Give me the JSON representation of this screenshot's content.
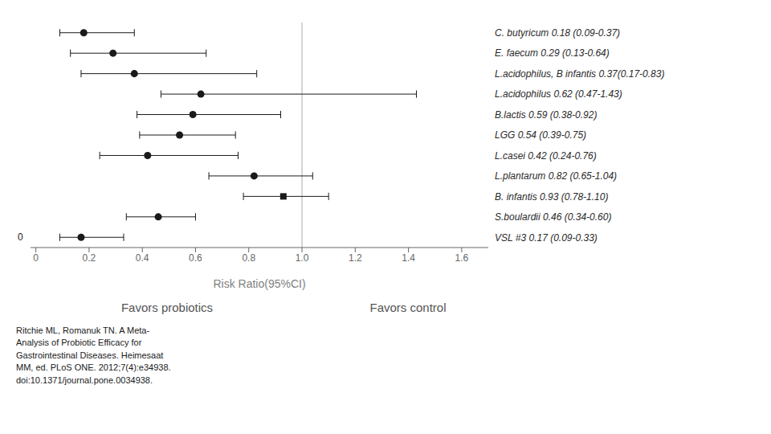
{
  "chart_data": {
    "type": "forest",
    "xlabel": "Risk Ratio(95%CI)",
    "categories": [
      "C. butyricum 0.18 (0.09-0.37)",
      "E. faecum 0.29 (0.13-0.64)",
      "L.acidophilus, B infantis 0.37(0.17-0.83)",
      "L.acidophilus 0.62 (0.47-1.43)",
      "B.lactis 0.59 (0.38-0.92)",
      "LGG 0.54 (0.39-0.75)",
      "L.casei 0.42 (0.24-0.76)",
      "L.plantarum 0.82 (0.65-1.04)",
      "B. infantis 0.93 (0.78-1.10)",
      "S.boulardii 0.46 (0.34-0.60)",
      "VSL #3 0.17 (0.09-0.33)"
    ],
    "series": [
      {
        "marker": "circle",
        "color": "#1a1a1a",
        "values": [
          0.18,
          0.29,
          0.37,
          0.62,
          0.59,
          0.54,
          0.42,
          0.82,
          null,
          0.46,
          0.17
        ],
        "ci_low": [
          0.09,
          0.13,
          0.17,
          0.47,
          0.38,
          0.39,
          0.24,
          0.65,
          null,
          0.34,
          0.09
        ],
        "ci_high": [
          0.37,
          0.64,
          0.83,
          1.43,
          0.92,
          0.75,
          0.76,
          1.04,
          null,
          0.6,
          0.33
        ]
      },
      {
        "marker": "square",
        "color": "#1a1a1a",
        "values": [
          null,
          null,
          null,
          null,
          null,
          null,
          null,
          null,
          0.93,
          null,
          null
        ],
        "ci_low": [
          null,
          null,
          null,
          null,
          null,
          null,
          null,
          null,
          0.78,
          null,
          null
        ],
        "ci_high": [
          null,
          null,
          null,
          null,
          null,
          null,
          null,
          null,
          1.1,
          null,
          null
        ]
      }
    ],
    "xlim": [
      -0.02,
      1.7
    ],
    "xticks": [
      0,
      0.2,
      0.4,
      0.6,
      0.8,
      {
        "value": 1.0,
        "label": "1.0"
      },
      1.2,
      1.4,
      1.6
    ],
    "vline": 1.0,
    "annotations": [
      "0",
      "Favors probiotics",
      "Favors control",
      "Ritchie ML, Romanuk TN. A Meta-\nAnalysis of Probiotic Efficacy for\nGastrointestinal Diseases. Heimesaat\nMM, ed. PLoS ONE. 2012;7(4):e34938.\ndoi:10.1371/journal.pone.0034938."
    ],
    "grid": false
  }
}
